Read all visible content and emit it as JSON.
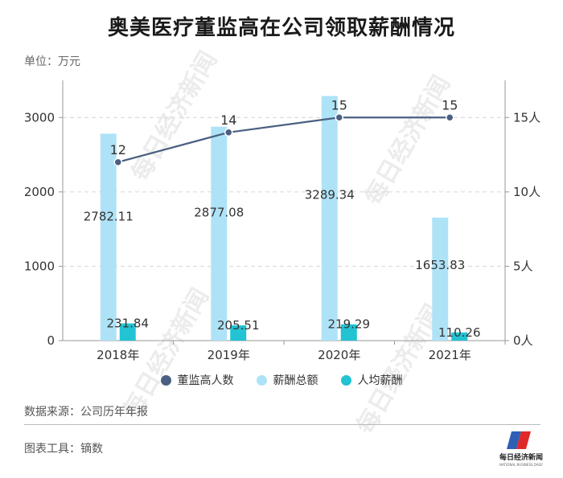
{
  "title": "奥美医疗董监高在公司领取薪酬情况",
  "unit_label": "单位：万元",
  "source": "数据来源：公司历年年报",
  "tools": "图表工具：镝数",
  "watermark": "每日经济新闻",
  "logo_text": "每日经济新闻",
  "chart_data": {
    "type": "bar",
    "categories": [
      "2018年",
      "2019年",
      "2020年",
      "2021年"
    ],
    "ylim": [
      0,
      3500
    ],
    "y_ticks": [
      0,
      1000,
      2000,
      3000
    ],
    "y2lim": [
      0,
      17.5
    ],
    "y2_ticks": [
      "0人",
      "5人",
      "10人",
      "15人"
    ],
    "y2_tick_values": [
      0,
      5,
      10,
      15
    ],
    "series": [
      {
        "name": "董监高人数",
        "kind": "line",
        "axis": "right",
        "color": "#4a5f82",
        "values": [
          12,
          14,
          15,
          15
        ],
        "labels": [
          "12",
          "14",
          "15",
          "15"
        ]
      },
      {
        "name": "薪酬总额",
        "kind": "bar",
        "axis": "left",
        "color": "#aee3f7",
        "values": [
          2782.11,
          2877.08,
          3289.34,
          1653.83
        ],
        "labels": [
          "2782.11",
          "2877.08",
          "3289.34",
          "1653.83"
        ]
      },
      {
        "name": "人均薪酬",
        "kind": "bar",
        "axis": "left",
        "color": "#22c3d3",
        "values": [
          231.84,
          205.51,
          219.29,
          110.26
        ],
        "labels": [
          "231.84",
          "205.51",
          "219.29",
          "110.26"
        ]
      }
    ],
    "grid": true,
    "legend_position": "bottom"
  }
}
